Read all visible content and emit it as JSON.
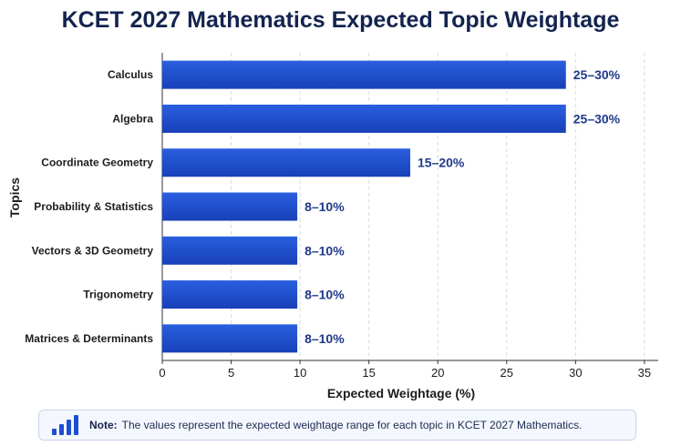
{
  "chart_data": {
    "type": "bar",
    "orientation": "horizontal",
    "title": "KCET 2027 Mathematics Expected Topic Weightage",
    "xlabel": "Expected Weightage (%)",
    "ylabel": "Topics",
    "xlim": [
      0,
      36
    ],
    "xticks": [
      0,
      5,
      10,
      15,
      20,
      25,
      30,
      35
    ],
    "grid": "vertical dashed",
    "bar_color": "#1f4fd0",
    "label_color": "#1f3a8a",
    "categories": [
      "Calculus",
      "Algebra",
      "Coordinate Geometry",
      "Probability & Statistics",
      "Vectors & 3D Geometry",
      "Trigonometry",
      "Matrices & Determinants"
    ],
    "values": [
      29.3,
      29.3,
      18.0,
      9.8,
      9.8,
      9.8,
      9.8
    ],
    "data_labels": [
      "25–30%",
      "25–30%",
      "15–20%",
      "8–10%",
      "8–10%",
      "8–10%",
      "8–10%"
    ]
  },
  "note": {
    "label": "Note:",
    "text": "The values represent the expected weightage range for each topic in KCET 2027 Mathematics.",
    "icon": "bar-chart-icon"
  }
}
